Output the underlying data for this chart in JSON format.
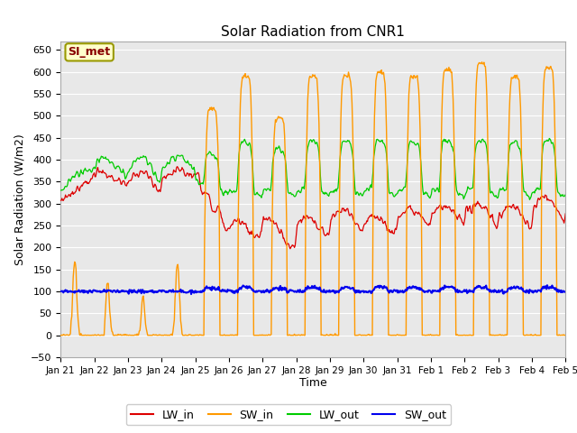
{
  "title": "Solar Radiation from CNR1",
  "xlabel": "Time",
  "ylabel": "Solar Radiation (W/m2)",
  "ylim": [
    -50,
    670
  ],
  "yticks": [
    -50,
    0,
    50,
    100,
    150,
    200,
    250,
    300,
    350,
    400,
    450,
    500,
    550,
    600,
    650
  ],
  "background_color": "#e8e8e8",
  "figure_bg": "#ffffff",
  "line_colors": {
    "LW_in": "#dd0000",
    "SW_in": "#ff9900",
    "LW_out": "#00cc00",
    "SW_out": "#0000ee"
  },
  "annotation_text": "SI_met",
  "annotation_bg": "#ffffcc",
  "annotation_border": "#999900",
  "n_days": 15,
  "tick_labels": [
    "Jan 21",
    "Jan 22",
    "Jan 23",
    "Jan 24",
    "Jan 25",
    "Jan 26",
    "Jan 27",
    "Jan 28",
    "Jan 29",
    "Jan 30",
    "Jan 31",
    "Feb 1",
    "Feb 2",
    "Feb 3",
    "Feb 4",
    "Feb 5"
  ]
}
